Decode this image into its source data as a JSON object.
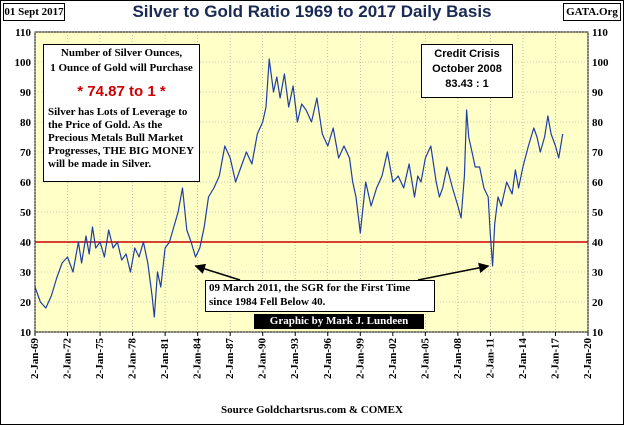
{
  "header": {
    "date": "01 Sept 2017",
    "site": "GATA.Org",
    "title": "Silver to Gold Ratio 1969 to 2017 Daily Basis"
  },
  "annotations": {
    "info_head_1": "Number of Silver Ounces,",
    "info_head_2": "1 Ounce of Gold will Purchase",
    "ratio_value": "* 74.87 to 1 *",
    "info_body": "Silver has Lots of Leverage to the Price of Gold.  As the Precious Metals Bull Market Progresses,  THE BIG MONEY will be made in Silver.",
    "credit_1": "Credit Crisis",
    "credit_2": "October 2008",
    "credit_3": "83.43 : 1",
    "march_note_1": "09 March 2011, the SGR for the First Time",
    "march_note_2": "since 1984 Fell Below  40.",
    "byline": "Graphic by Mark J. Lundeen",
    "source": "Source Goldchartsrus.com & COMEX"
  },
  "colors": {
    "plot_background": "#ffffc8",
    "series": "#1f3fa6",
    "reference_line": "#cc0000",
    "title": "#1a2a55"
  },
  "chart_data": {
    "type": "line",
    "title": "Silver to Gold Ratio 1969 to 2017 Daily Basis",
    "ylim": [
      10,
      110
    ],
    "xlim": [
      1969.0,
      2020.0
    ],
    "y_ticks": [
      10,
      20,
      30,
      40,
      50,
      60,
      70,
      80,
      90,
      100,
      110
    ],
    "x_tick_labels": [
      "2-Jan-69",
      "2-Jan-72",
      "2-Jan-75",
      "2-Jan-78",
      "2-Jan-81",
      "2-Jan-84",
      "2-Jan-87",
      "2-Jan-90",
      "2-Jan-93",
      "2-Jan-96",
      "2-Jan-99",
      "2-Jan-02",
      "2-Jan-05",
      "2-Jan-08",
      "2-Jan-11",
      "2-Jan-14",
      "2-Jan-17",
      "2-Jan-20"
    ],
    "grid": true,
    "reference_line": 40,
    "series": [
      {
        "x": [
          1969.0,
          1969.5,
          1970.0,
          1970.5,
          1971.0,
          1971.5,
          1972.0,
          1972.5,
          1973.0,
          1973.3,
          1973.7,
          1974.0,
          1974.3,
          1974.6,
          1975.0,
          1975.4,
          1975.8,
          1976.2,
          1976.6,
          1977.0,
          1977.4,
          1977.8,
          1978.2,
          1978.6,
          1979.0,
          1979.4,
          1979.8,
          1980.0,
          1980.3,
          1980.6,
          1981.0,
          1981.4,
          1981.8,
          1982.2,
          1982.6,
          1983.0,
          1983.4,
          1983.8,
          1984.2,
          1984.6,
          1985.0,
          1985.5,
          1986.0,
          1986.5,
          1987.0,
          1987.5,
          1988.0,
          1988.5,
          1989.0,
          1989.5,
          1990.0,
          1990.3,
          1990.6,
          1991.0,
          1991.3,
          1991.6,
          1992.0,
          1992.4,
          1992.8,
          1993.2,
          1993.6,
          1994.0,
          1994.5,
          1995.0,
          1995.5,
          1996.0,
          1996.5,
          1997.0,
          1997.5,
          1998.0,
          1998.3,
          1998.6,
          1999.0,
          1999.5,
          2000.0,
          2000.5,
          2001.0,
          2001.5,
          2002.0,
          2002.5,
          2003.0,
          2003.5,
          2004.0,
          2004.3,
          2004.6,
          2005.0,
          2005.5,
          2006.0,
          2006.3,
          2006.6,
          2007.0,
          2007.5,
          2008.0,
          2008.3,
          2008.6,
          2008.8,
          2009.0,
          2009.3,
          2009.6,
          2010.0,
          2010.4,
          2010.8,
          2011.0,
          2011.2,
          2011.4,
          2011.7,
          2012.0,
          2012.5,
          2013.0,
          2013.3,
          2013.6,
          2014.0,
          2014.5,
          2015.0,
          2015.3,
          2015.6,
          2016.0,
          2016.3,
          2016.6,
          2017.0,
          2017.3,
          2017.67
        ],
        "y": [
          25,
          20,
          18,
          22,
          28,
          33,
          35,
          30,
          40,
          33,
          42,
          36,
          45,
          38,
          40,
          35,
          44,
          38,
          40,
          34,
          36,
          30,
          38,
          35,
          40,
          33,
          22,
          15,
          30,
          25,
          38,
          40,
          45,
          50,
          58,
          44,
          40,
          35,
          38,
          45,
          55,
          58,
          62,
          72,
          68,
          60,
          65,
          70,
          66,
          76,
          80,
          85,
          101,
          90,
          95,
          88,
          96,
          85,
          92,
          80,
          86,
          84,
          80,
          88,
          76,
          72,
          78,
          68,
          72,
          68,
          60,
          55,
          43,
          60,
          52,
          58,
          62,
          70,
          60,
          62,
          58,
          66,
          55,
          62,
          60,
          68,
          72,
          60,
          55,
          58,
          65,
          58,
          52,
          48,
          62,
          84,
          75,
          70,
          65,
          65,
          58,
          55,
          42,
          32,
          46,
          55,
          52,
          60,
          56,
          64,
          58,
          65,
          72,
          78,
          75,
          70,
          75,
          82,
          76,
          72,
          68,
          76
        ]
      }
    ]
  }
}
